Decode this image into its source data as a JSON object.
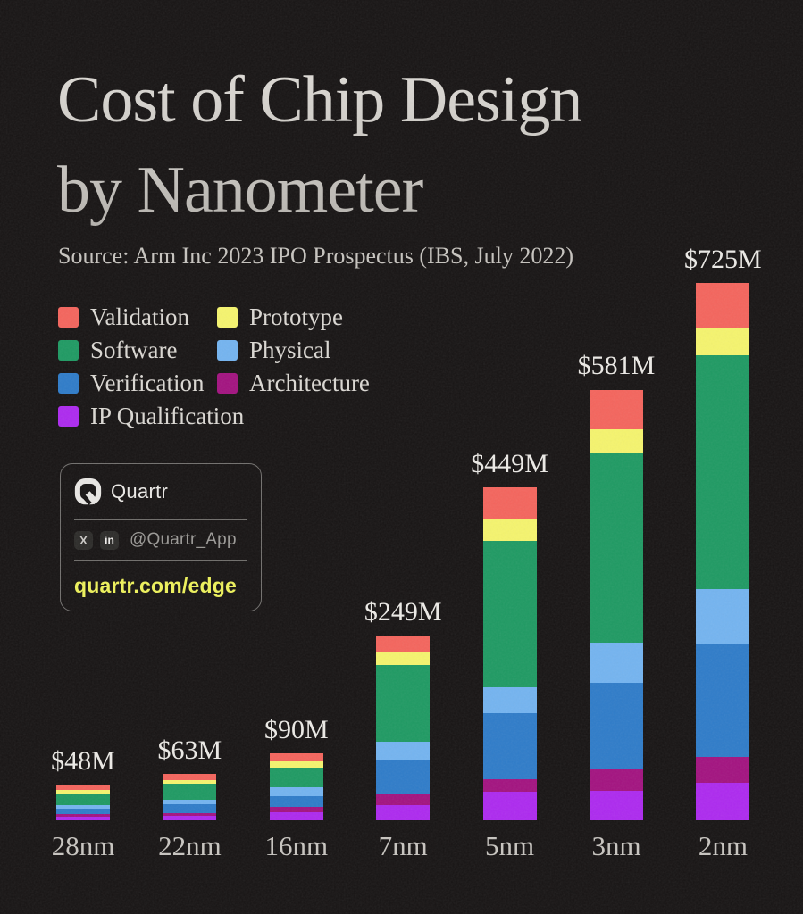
{
  "title": {
    "line1": "Cost of Chip Design",
    "line2": "by Nanometer"
  },
  "source": "Source: Arm Inc 2023 IPO Prospectus (IBS, July 2022)",
  "legend": [
    {
      "label": "Validation",
      "color": "#f4655d"
    },
    {
      "label": "Prototype",
      "color": "#f5f46e"
    },
    {
      "label": "Software",
      "color": "#1f9a63"
    },
    {
      "label": "Physical",
      "color": "#74b4f0"
    },
    {
      "label": "Verification",
      "color": "#2f7cc9"
    },
    {
      "label": "Architecture",
      "color": "#a31380"
    },
    {
      "label": "IP Qualification",
      "color": "#ad2aef"
    }
  ],
  "brand_card": {
    "brand": "Quartr",
    "handle": "@Quartr_App",
    "url": "quartr.com/edge",
    "icons": {
      "x": "X",
      "linkedin": "in"
    },
    "accent": "#eef25b"
  },
  "chart_data": {
    "type": "bar",
    "stacked": true,
    "unit": "$M (USD millions)",
    "title": "Cost of Chip Design by Nanometer",
    "categories": [
      "28nm",
      "22nm",
      "16nm",
      "7nm",
      "5nm",
      "3nm",
      "2nm"
    ],
    "totals": [
      48,
      63,
      90,
      249,
      449,
      581,
      725
    ],
    "total_labels": [
      "$48M",
      "$63M",
      "$90M",
      "$249M",
      "$449M",
      "$581M",
      "$725M"
    ],
    "series_bottom_to_top": [
      {
        "name": "IP Qualification",
        "color": "#ad2aef",
        "values": [
          5,
          6,
          11,
          21,
          38,
          40,
          51
        ]
      },
      {
        "name": "Architecture",
        "color": "#a31380",
        "values": [
          3,
          4,
          7,
          15,
          18,
          29,
          34
        ]
      },
      {
        "name": "Verification",
        "color": "#2f7cc9",
        "values": [
          8,
          12,
          15,
          45,
          88,
          116,
          154
        ]
      },
      {
        "name": "Physical",
        "color": "#74b4f0",
        "values": [
          5,
          6,
          11,
          25,
          36,
          55,
          73
        ]
      },
      {
        "name": "Software",
        "color": "#1f9a63",
        "values": [
          15,
          21,
          27,
          103,
          197,
          256,
          315
        ]
      },
      {
        "name": "Prototype",
        "color": "#f5f46e",
        "values": [
          5,
          5,
          8,
          17,
          30,
          32,
          38
        ]
      },
      {
        "name": "Validation",
        "color": "#f4655d",
        "values": [
          7,
          9,
          11,
          23,
          42,
          53,
          60
        ]
      }
    ],
    "value_axis_range": [
      0,
      730
    ],
    "grid": false,
    "legend_position": "top-left"
  }
}
